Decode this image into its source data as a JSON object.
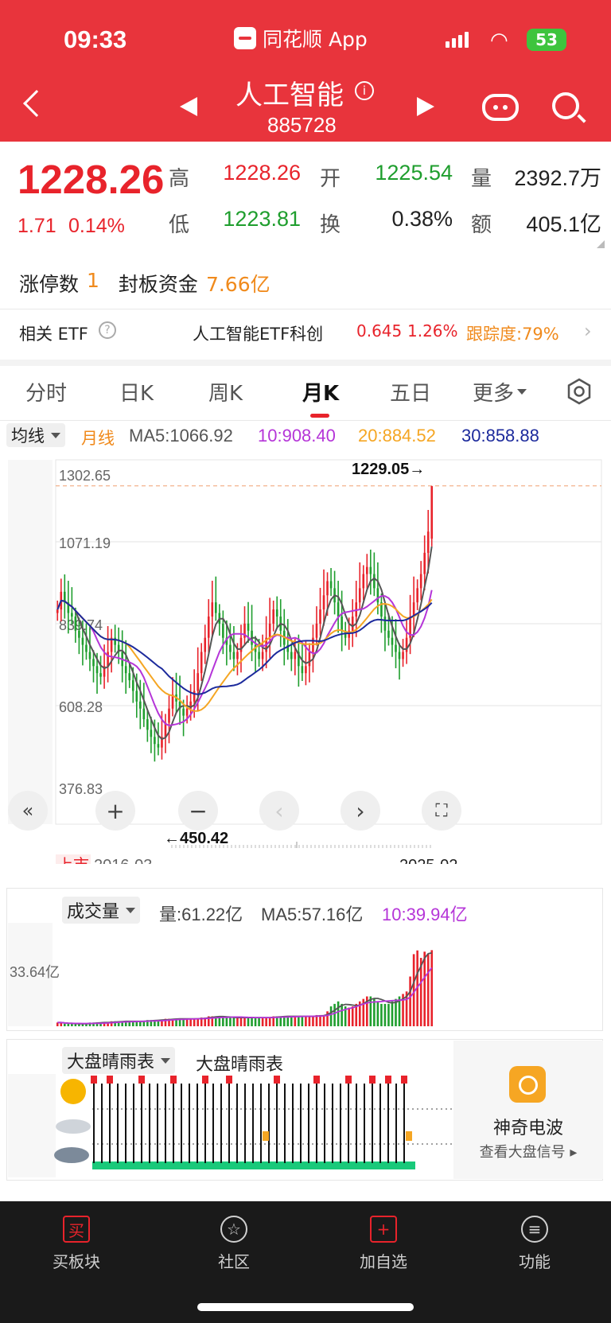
{
  "status_bar": {
    "time": "09:33",
    "app_name": "同花顺 App",
    "battery": "53"
  },
  "header": {
    "title": "人工智能",
    "code": "885728"
  },
  "quote": {
    "price": "1228.26",
    "change": "1.71",
    "change_pct": "0.14%",
    "high_label": "高",
    "high": "1228.26",
    "open_label": "开",
    "open": "1225.54",
    "volume_label": "量",
    "volume": "2392.7万",
    "low_label": "低",
    "low": "1223.81",
    "turnover_label": "换",
    "turnover": "0.38%",
    "amount_label": "额",
    "amount": "405.1亿"
  },
  "limit_up": {
    "count_label": "涨停数",
    "count": "1",
    "fund_label": "封板资金",
    "fund": "7.66亿"
  },
  "etf": {
    "label": "相关 ETF",
    "name": "人工智能ETF科创",
    "price": "0.645",
    "pct": "1.26%",
    "tracking": "跟踪度:79%"
  },
  "tabs": [
    "分时",
    "日K",
    "周K",
    "月K",
    "五日",
    "更多"
  ],
  "active_tab": "月K",
  "ma_legend": {
    "selector": "均线",
    "period": "月线",
    "ma5": "MA5:1066.92",
    "ma10": "10:908.40",
    "ma20": "20:884.52",
    "ma30": "30:858.88"
  },
  "kline": {
    "y_ticks": [
      "1302.65",
      "1071.19",
      "839.74",
      "608.28",
      "376.83"
    ],
    "high_marker": "1229.05→",
    "low_marker": "←450.42",
    "listing_label": "上市",
    "start_date": "2016-03",
    "end_date": "2025-02"
  },
  "volume_panel": {
    "selector": "成交量",
    "vol": "量:61.22亿",
    "ma5": "MA5:57.16亿",
    "ma10": "10:39.94亿",
    "y_tick": "33.64亿"
  },
  "weather_panel": {
    "selector": "大盘晴雨表",
    "title": "大盘晴雨表"
  },
  "wave_card": {
    "title": "神奇电波",
    "link": "查看大盘信号"
  },
  "bottom_nav": [
    "买板块",
    "社区",
    "加自选",
    "功能"
  ],
  "colors": {
    "up": "#e8232b",
    "down": "#1f9e2e",
    "ma5": "#555555",
    "ma10": "#b535d8",
    "ma20": "#f5a623",
    "ma30": "#1c2a9c",
    "header": "#e8343c"
  },
  "chart_data": {
    "type": "candlestick",
    "title": "",
    "x_range": [
      "2016-03",
      "2025-02"
    ],
    "ylim": [
      376.83,
      1302.65
    ],
    "y_ticks": [
      1302.65,
      1071.19,
      839.74,
      608.28,
      376.83
    ],
    "period_max": 1229.05,
    "period_min": 450.42,
    "grid": true,
    "ma_last": {
      "MA5": 1066.92,
      "MA10": 908.4,
      "MA20": 884.52,
      "MA30": 858.88
    },
    "close_series": [
      880,
      930,
      900,
      870,
      860,
      820,
      800,
      780,
      760,
      740,
      720,
      700,
      690,
      720,
      760,
      800,
      780,
      760,
      720,
      700,
      680,
      650,
      620,
      600,
      570,
      540,
      520,
      500,
      490,
      520,
      560,
      600,
      640,
      620,
      600,
      580,
      600,
      620,
      650,
      700,
      760,
      800,
      860,
      900,
      870,
      840,
      800,
      780,
      760,
      740,
      760,
      800,
      840,
      820,
      780,
      760,
      740,
      760,
      800,
      840,
      880,
      860,
      820,
      780,
      760,
      740,
      760,
      720,
      700,
      720,
      760,
      800,
      840,
      880,
      920,
      960,
      940,
      900,
      860,
      820,
      800,
      820,
      860,
      900,
      940,
      980,
      1000,
      980,
      940,
      900,
      860,
      820,
      800,
      780,
      760,
      740,
      760,
      800,
      860,
      900,
      940,
      980,
      1040,
      1100,
      1228.26
    ],
    "volume_series": [
      3,
      3,
      2,
      2,
      2,
      2,
      2,
      2,
      2,
      3,
      3,
      3,
      3,
      3,
      3,
      4,
      4,
      4,
      4,
      4,
      4,
      4,
      4,
      4,
      4,
      5,
      5,
      5,
      5,
      5,
      6,
      6,
      6,
      6,
      6,
      6,
      6,
      6,
      6,
      6,
      7,
      7,
      8,
      8,
      8,
      8,
      7,
      7,
      7,
      7,
      7,
      7,
      7,
      7,
      7,
      7,
      7,
      7,
      7,
      7,
      8,
      8,
      8,
      8,
      8,
      8,
      8,
      8,
      8,
      8,
      8,
      8,
      9,
      9,
      9,
      12,
      16,
      18,
      20,
      18,
      16,
      15,
      16,
      18,
      20,
      22,
      24,
      24,
      22,
      20,
      18,
      18,
      18,
      20,
      22,
      24,
      26,
      28,
      40,
      58,
      61,
      55,
      60,
      58,
      61.22
    ]
  }
}
